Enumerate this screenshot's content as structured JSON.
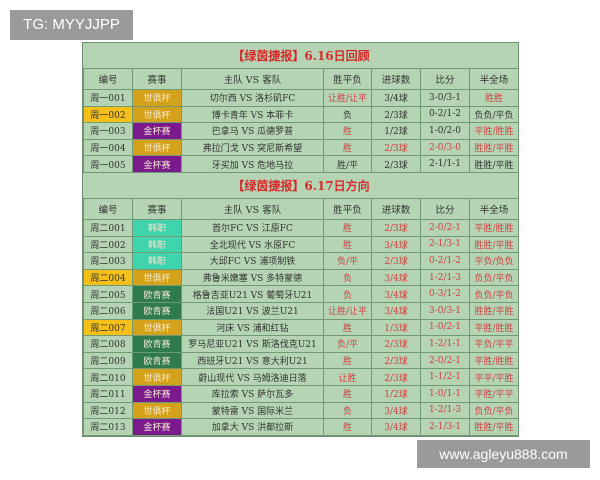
{
  "watermarks": {
    "top_left": "TG: MYYJJPP",
    "bottom_right": "www.agleyu888.com"
  },
  "colors": {
    "世俱杯": "#d4a21a",
    "金杯赛": "#7a1a8c",
    "韩职": "#3fd3ae",
    "欧青赛": "#2f7a4e",
    "highlight": "#f5bf1a"
  },
  "headers": [
    "编号",
    "赛事",
    "主队 VS 客队",
    "胜平负",
    "进球数",
    "比分",
    "半全场"
  ],
  "sections": [
    {
      "title": "【绿茵捷报】6.16日回顾",
      "rows": [
        {
          "id": "周一001",
          "league": "世俱杯",
          "match": "切尔西 VS 洛杉矶FC",
          "result": "让胜/让平",
          "goals": "3/4球",
          "score": "3-0/3-1",
          "hf": "胜胜",
          "red": [
            true,
            false,
            false,
            true
          ],
          "hl": false
        },
        {
          "id": "周一002",
          "league": "世俱杯",
          "match": "博卡青年 VS 本菲卡",
          "result": "负",
          "goals": "2/3球",
          "score": "0-2/1-2",
          "hf": "负负/平负",
          "red": [
            false,
            false,
            false,
            false
          ],
          "hl": true
        },
        {
          "id": "周一003",
          "league": "金杯赛",
          "match": "巴拿马 VS 瓜德罗普",
          "result": "胜",
          "goals": "1/2球",
          "score": "1-0/2-0",
          "hf": "平胜/胜胜",
          "red": [
            true,
            false,
            false,
            true
          ],
          "hl": false
        },
        {
          "id": "周一004",
          "league": "世俱杯",
          "match": "弗拉门戈 VS 突尼斯希望",
          "result": "胜",
          "goals": "2/3球",
          "score": "2-0/3-0",
          "hf": "胜胜/平胜",
          "red": [
            true,
            true,
            true,
            true
          ],
          "hl": false
        },
        {
          "id": "周一005",
          "league": "金杯赛",
          "match": "牙买加 VS 危地马拉",
          "result": "胜/平",
          "goals": "2/3球",
          "score": "2-1/1-1",
          "hf": "胜胜/平胜",
          "red": [
            false,
            false,
            false,
            false
          ],
          "hl": false
        }
      ]
    },
    {
      "title": "【绿茵捷报】6.17日方向",
      "rows": [
        {
          "id": "周二001",
          "league": "韩职",
          "match": "首尔FC VS 江原FC",
          "result": "胜",
          "goals": "2/3球",
          "score": "2-0/2-1",
          "hf": "平胜/胜胜",
          "red": [
            true,
            true,
            true,
            true
          ],
          "hl": false
        },
        {
          "id": "周二002",
          "league": "韩职",
          "match": "全北现代 VS 水原FC",
          "result": "胜",
          "goals": "3/4球",
          "score": "2-1/3-1",
          "hf": "胜胜/平胜",
          "red": [
            true,
            true,
            true,
            true
          ],
          "hl": false
        },
        {
          "id": "周二003",
          "league": "韩职",
          "match": "大邱FC VS 浦项制铁",
          "result": "负/平",
          "goals": "2/3球",
          "score": "0-2/1-2",
          "hf": "平负/负负",
          "red": [
            true,
            true,
            true,
            true
          ],
          "hl": false
        },
        {
          "id": "周二004",
          "league": "世俱杯",
          "match": "弗鲁米嫩塞 VS 多特蒙德",
          "result": "负",
          "goals": "3/4球",
          "score": "1-2/1-3",
          "hf": "负负/平负",
          "red": [
            true,
            true,
            true,
            true
          ],
          "hl": true
        },
        {
          "id": "周二005",
          "league": "欧青赛",
          "match": "格鲁吉亚U21 VS 葡萄牙U21",
          "result": "负",
          "goals": "3/4球",
          "score": "0-3/1-2",
          "hf": "负负/平负",
          "red": [
            true,
            true,
            true,
            true
          ],
          "hl": false
        },
        {
          "id": "周二006",
          "league": "欧青赛",
          "match": "法国U21 VS 波兰U21",
          "result": "让胜/让平",
          "goals": "3/4球",
          "score": "3-0/3-1",
          "hf": "胜胜/平胜",
          "red": [
            true,
            true,
            true,
            true
          ],
          "hl": false
        },
        {
          "id": "周二007",
          "league": "世俱杯",
          "match": "河床 VS 浦和红钻",
          "result": "胜",
          "goals": "1/3球",
          "score": "1-0/2-1",
          "hf": "平胜/胜胜",
          "red": [
            true,
            true,
            true,
            true
          ],
          "hl": true
        },
        {
          "id": "周二008",
          "league": "欧青赛",
          "match": "罗马尼亚U21 VS 斯洛伐克U21",
          "result": "负/平",
          "goals": "2/3球",
          "score": "1-2/1-1",
          "hf": "平负/平平",
          "red": [
            true,
            true,
            true,
            true
          ],
          "hl": false
        },
        {
          "id": "周二009",
          "league": "欧青赛",
          "match": "西班牙U21 VS 意大利U21",
          "result": "胜",
          "goals": "2/3球",
          "score": "2-0/2-1",
          "hf": "平胜/胜胜",
          "red": [
            true,
            true,
            true,
            true
          ],
          "hl": false
        },
        {
          "id": "周二010",
          "league": "世俱杯",
          "match": "蔚山现代 VS 马姆洛迪日落",
          "result": "让胜",
          "goals": "2/3球",
          "score": "1-1/2-1",
          "hf": "平平/平胜",
          "red": [
            true,
            true,
            true,
            true
          ],
          "hl": false
        },
        {
          "id": "周二011",
          "league": "金杯赛",
          "match": "库拉索 VS 萨尔瓦多",
          "result": "胜",
          "goals": "1/2球",
          "score": "1-0/1-1",
          "hf": "平胜/平平",
          "red": [
            true,
            true,
            true,
            true
          ],
          "hl": false
        },
        {
          "id": "周二012",
          "league": "世俱杯",
          "match": "蒙特雷 VS 国际米兰",
          "result": "负",
          "goals": "3/4球",
          "score": "1-2/1-3",
          "hf": "负负/平负",
          "red": [
            true,
            true,
            true,
            true
          ],
          "hl": false
        },
        {
          "id": "周二013",
          "league": "金杯赛",
          "match": "加拿大 VS 洪都拉斯",
          "result": "胜",
          "goals": "3/4球",
          "score": "2-1/3-1",
          "hf": "胜胜/平胜",
          "red": [
            true,
            true,
            true,
            true
          ],
          "hl": false
        }
      ]
    }
  ]
}
